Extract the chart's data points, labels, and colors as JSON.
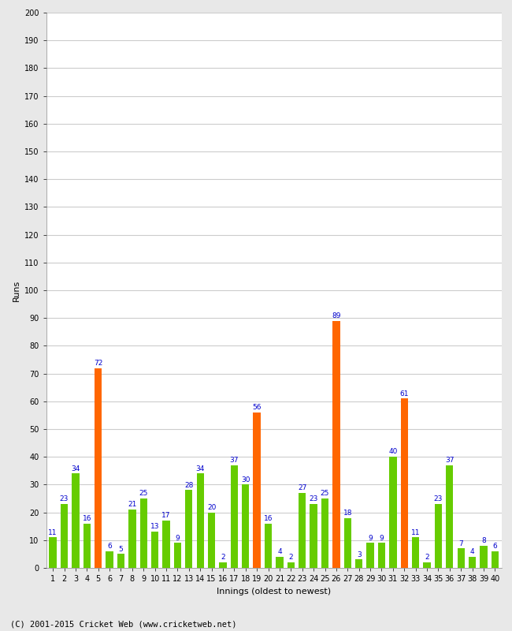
{
  "innings": [
    1,
    2,
    3,
    4,
    5,
    6,
    7,
    8,
    9,
    10,
    11,
    12,
    13,
    14,
    15,
    16,
    17,
    18,
    19,
    20,
    21,
    22,
    23,
    24,
    25,
    26,
    27,
    28,
    29,
    30,
    31,
    32,
    33,
    34,
    35,
    36,
    37,
    38,
    39,
    40
  ],
  "values": [
    11,
    23,
    34,
    16,
    72,
    6,
    5,
    21,
    25,
    13,
    17,
    9,
    28,
    34,
    20,
    2,
    37,
    30,
    56,
    16,
    4,
    2,
    27,
    23,
    25,
    89,
    18,
    3,
    9,
    9,
    40,
    61,
    11,
    2,
    23,
    37,
    7,
    4,
    8,
    6
  ],
  "colors": [
    "#66cc00",
    "#66cc00",
    "#66cc00",
    "#66cc00",
    "#ff6600",
    "#66cc00",
    "#66cc00",
    "#66cc00",
    "#66cc00",
    "#66cc00",
    "#66cc00",
    "#66cc00",
    "#66cc00",
    "#66cc00",
    "#66cc00",
    "#66cc00",
    "#66cc00",
    "#66cc00",
    "#ff6600",
    "#66cc00",
    "#66cc00",
    "#66cc00",
    "#66cc00",
    "#66cc00",
    "#66cc00",
    "#ff6600",
    "#66cc00",
    "#66cc00",
    "#66cc00",
    "#66cc00",
    "#66cc00",
    "#ff6600",
    "#66cc00",
    "#66cc00",
    "#66cc00",
    "#66cc00",
    "#66cc00",
    "#66cc00",
    "#66cc00",
    "#66cc00"
  ],
  "ylabel": "Runs",
  "xlabel": "Innings (oldest to newest)",
  "ylim": [
    0,
    200
  ],
  "yticks": [
    0,
    10,
    20,
    30,
    40,
    50,
    60,
    70,
    80,
    90,
    100,
    110,
    120,
    130,
    140,
    150,
    160,
    170,
    180,
    190,
    200
  ],
  "bg_color": "#e8e8e8",
  "plot_bg_color": "#ffffff",
  "label_color": "#0000cc",
  "label_fontsize": 6.5,
  "axis_fontsize": 8,
  "tick_fontsize": 7,
  "footer": "(C) 2001-2015 Cricket Web (www.cricketweb.net)",
  "footer_fontsize": 7.5
}
